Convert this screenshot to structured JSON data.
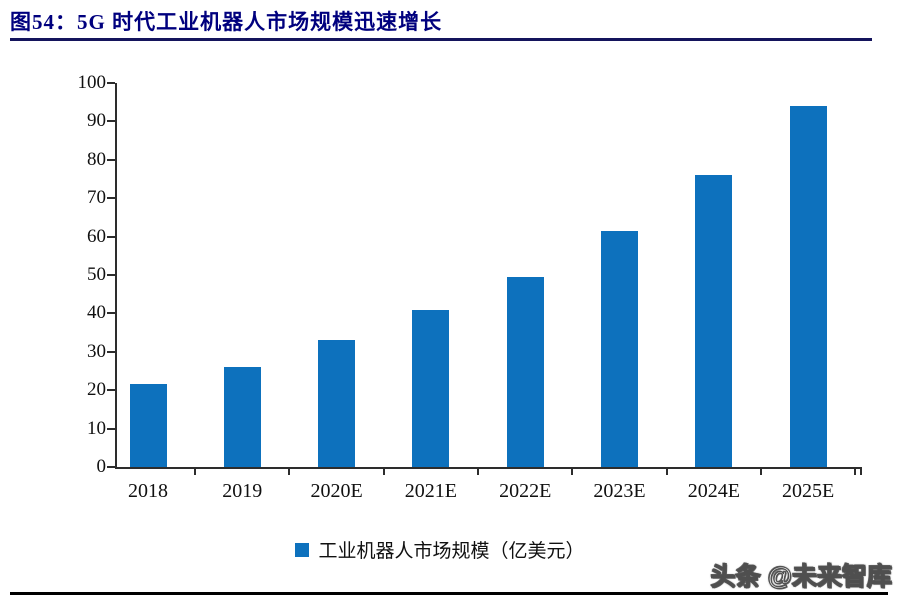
{
  "header": {
    "title": "图54：5G 时代工业机器人市场规模迅速增长"
  },
  "chart_data": {
    "type": "bar",
    "title": "5G 时代工业机器人市场规模迅速增长",
    "categories": [
      "2018",
      "2019",
      "2020E",
      "2021E",
      "2022E",
      "2023E",
      "2024E",
      "2025E"
    ],
    "values": [
      21.5,
      26,
      33,
      41,
      49.5,
      61.5,
      76,
      94
    ],
    "series": [
      {
        "name": "工业机器人市场规模（亿美元）",
        "values": [
          21.5,
          26,
          33,
          41,
          49.5,
          61.5,
          76,
          94
        ]
      }
    ],
    "xlabel": "",
    "ylabel": "",
    "ylim": [
      0,
      100
    ],
    "yticks": [
      0,
      10,
      20,
      30,
      40,
      50,
      60,
      70,
      80,
      90,
      100
    ],
    "grid": false,
    "legend_position": "bottom",
    "bar_color": "#0d71bd"
  },
  "legend": {
    "label": "工业机器人市场规模（亿美元）"
  },
  "watermark": {
    "text": "头条 @未来智库"
  },
  "colors": {
    "title": "#00007e",
    "title_rule": "#14145c",
    "axis": "#2d2d2d",
    "bar": "#0d71bd",
    "bottom_rule": "#000000"
  }
}
